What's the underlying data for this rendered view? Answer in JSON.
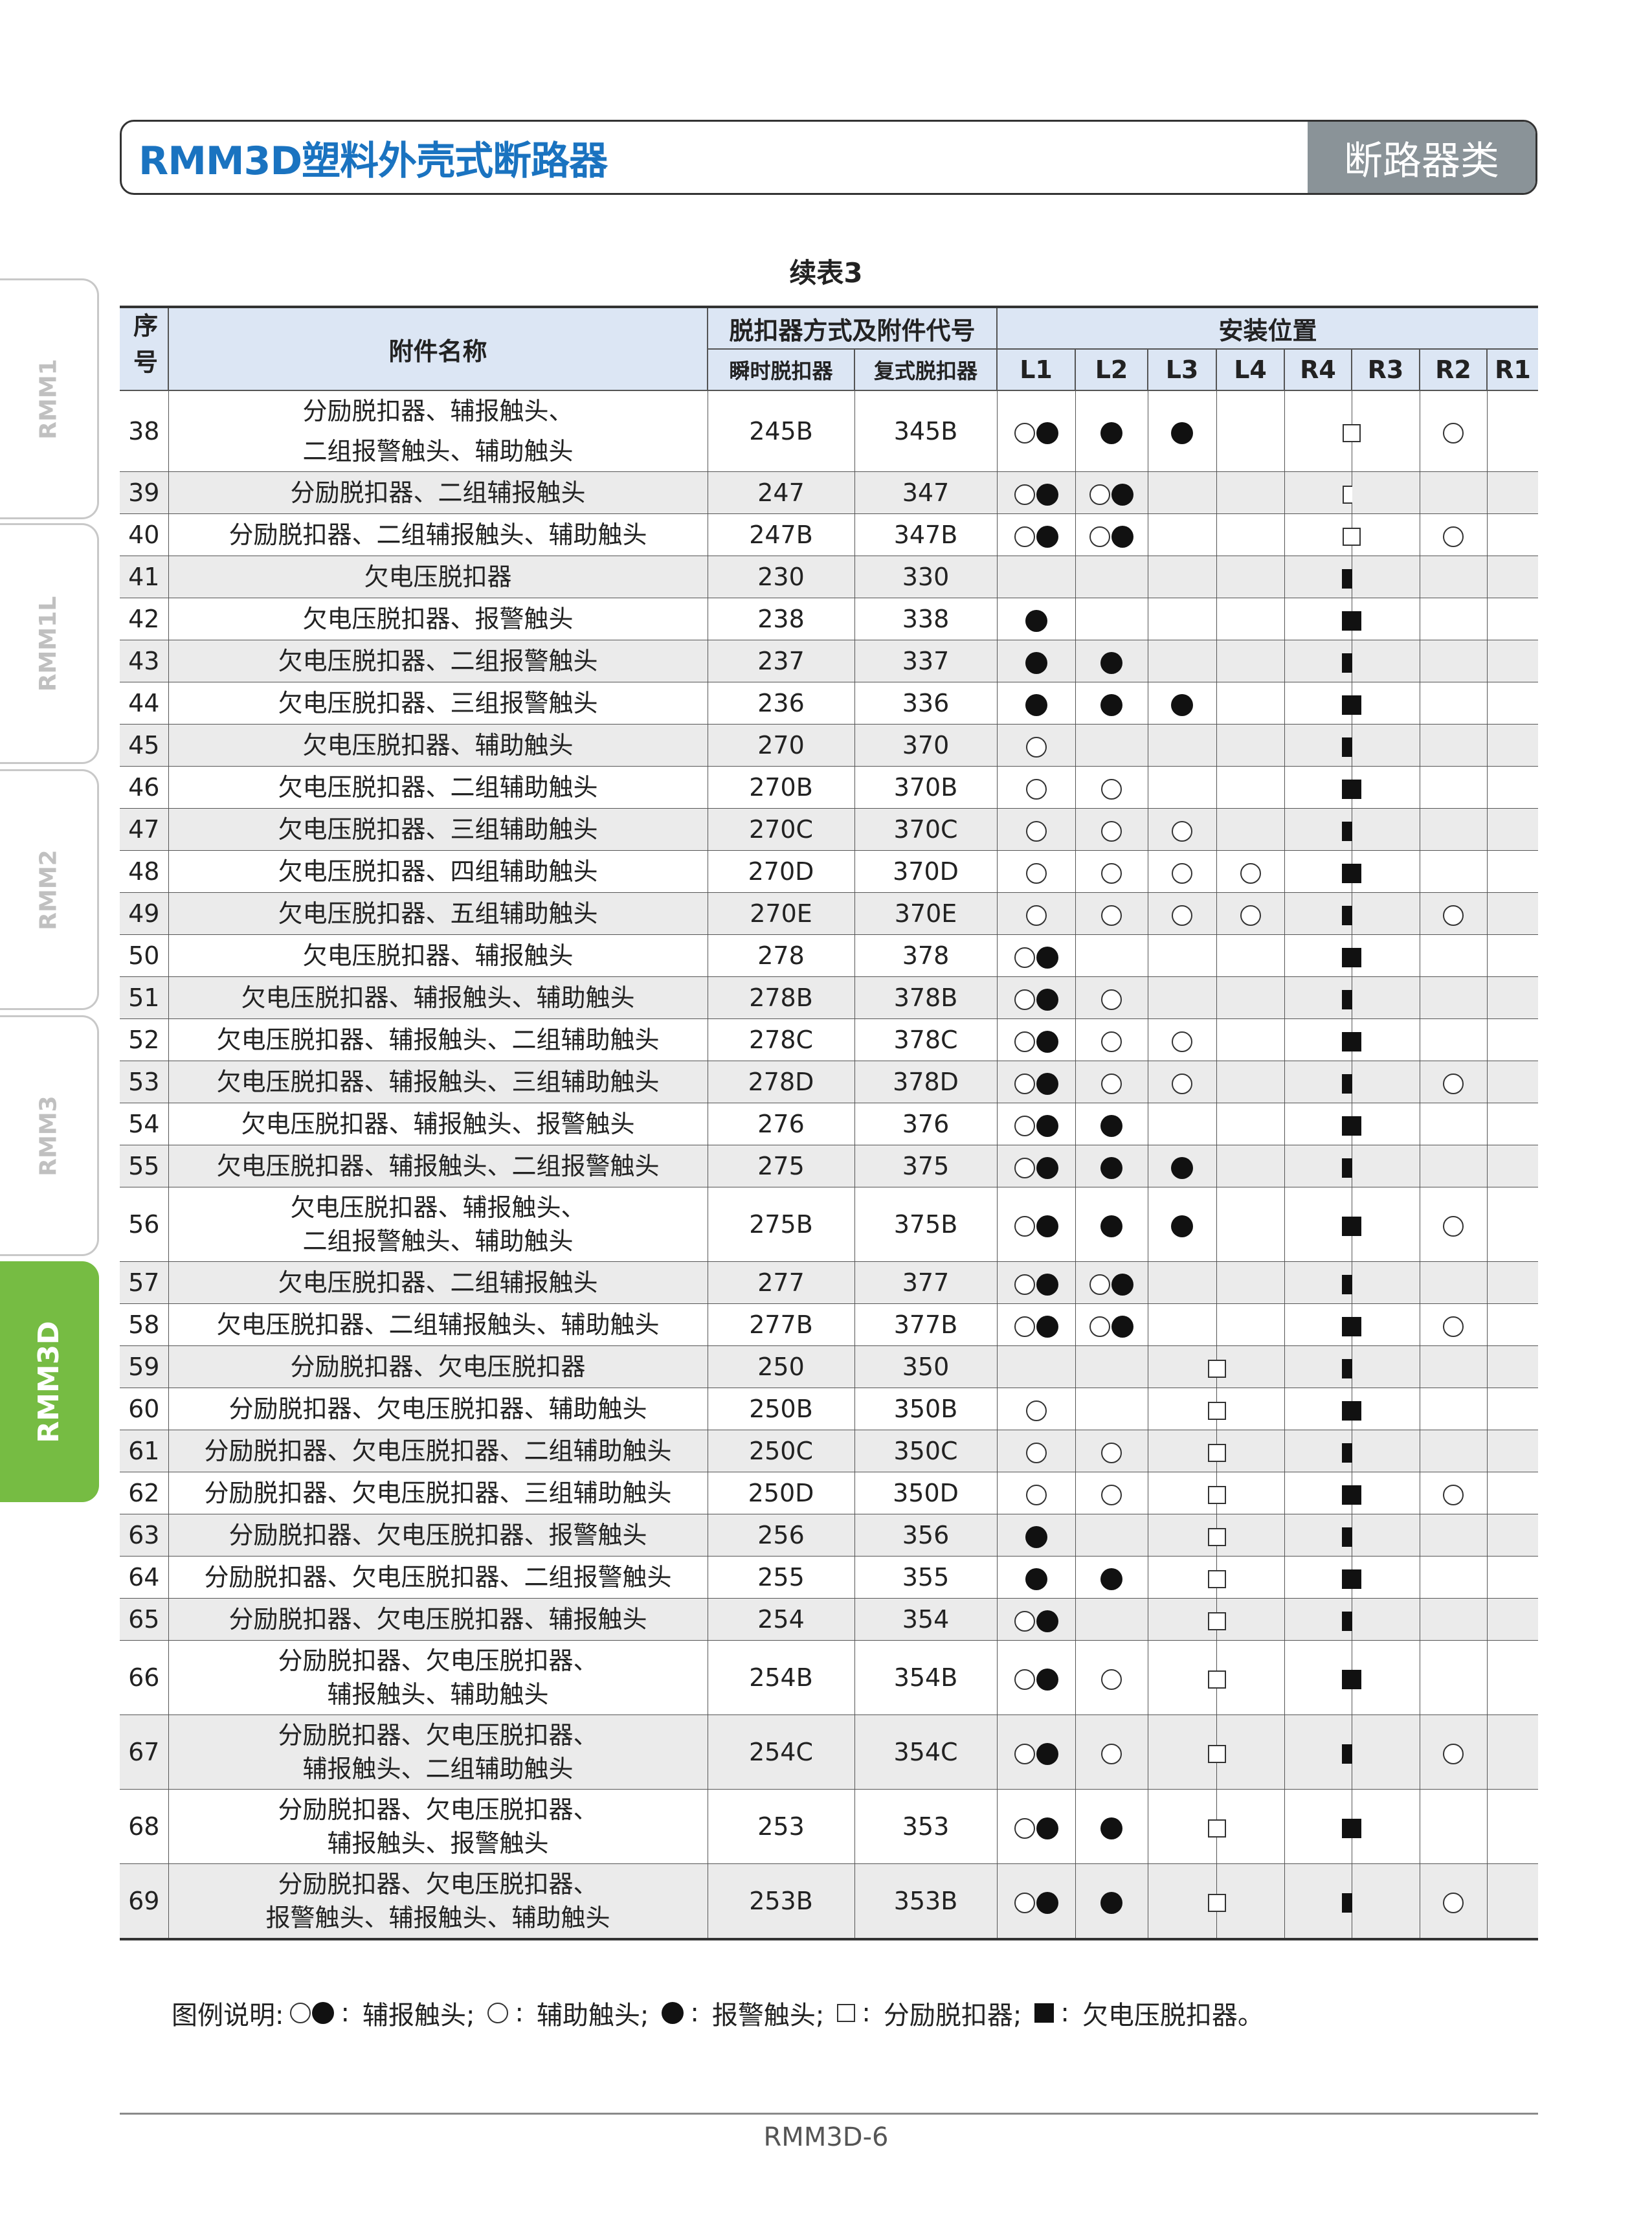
{
  "header": {
    "title": "RMM3D塑料外壳式断路器",
    "category": "断路器类"
  },
  "side_tabs": [
    {
      "label": "RMM1",
      "active": false
    },
    {
      "label": "RMM1L",
      "active": false
    },
    {
      "label": "RMM2",
      "active": false
    },
    {
      "label": "RMM3",
      "active": false
    },
    {
      "label": "RMM3D",
      "active": true
    }
  ],
  "caption": "续表3",
  "table": {
    "headers": {
      "seq": "序号",
      "name": "附件名称",
      "code_group": "脱扣器方式及附件代号",
      "instant": "瞬时脱扣器",
      "compound": "复式脱扣器",
      "position_group": "安装位置",
      "positions": [
        "L1",
        "L2",
        "L3",
        "L4",
        "R4",
        "R3",
        "R2",
        "R1"
      ]
    },
    "symbol_legend_codes": {
      "ob": "○●",
      "o": "○",
      "b": "●",
      "s": "□",
      "S": "■"
    },
    "rows": [
      {
        "seq": "38",
        "name": [
          "分励脱扣器、辅报触头、",
          "二组报警触头、辅助触头"
        ],
        "instant": "245B",
        "compound": "345B",
        "pos": {
          "L1": "ob",
          "L2": "b",
          "L3": "b",
          "R4": "s",
          "R2": "o"
        }
      },
      {
        "seq": "39",
        "name": [
          "分励脱扣器、二组辅报触头"
        ],
        "instant": "247",
        "compound": "347",
        "pos": {
          "L1": "ob",
          "L2": "ob",
          "R4": "s"
        }
      },
      {
        "seq": "40",
        "name": [
          "分励脱扣器、二组辅报触头、辅助触头"
        ],
        "instant": "247B",
        "compound": "347B",
        "pos": {
          "L1": "ob",
          "L2": "ob",
          "R4": "s",
          "R2": "o"
        }
      },
      {
        "seq": "41",
        "name": [
          "欠电压脱扣器"
        ],
        "instant": "230",
        "compound": "330",
        "pos": {
          "R4": "S"
        }
      },
      {
        "seq": "42",
        "name": [
          "欠电压脱扣器、报警触头"
        ],
        "instant": "238",
        "compound": "338",
        "pos": {
          "L1": "b",
          "R4": "S"
        }
      },
      {
        "seq": "43",
        "name": [
          "欠电压脱扣器、二组报警触头"
        ],
        "instant": "237",
        "compound": "337",
        "pos": {
          "L1": "b",
          "L2": "b",
          "R4": "S"
        }
      },
      {
        "seq": "44",
        "name": [
          "欠电压脱扣器、三组报警触头"
        ],
        "instant": "236",
        "compound": "336",
        "pos": {
          "L1": "b",
          "L2": "b",
          "L3": "b",
          "R4": "S"
        }
      },
      {
        "seq": "45",
        "name": [
          "欠电压脱扣器、辅助触头"
        ],
        "instant": "270",
        "compound": "370",
        "pos": {
          "L1": "o",
          "R4": "S"
        }
      },
      {
        "seq": "46",
        "name": [
          "欠电压脱扣器、二组辅助触头"
        ],
        "instant": "270B",
        "compound": "370B",
        "pos": {
          "L1": "o",
          "L2": "o",
          "R4": "S"
        }
      },
      {
        "seq": "47",
        "name": [
          "欠电压脱扣器、三组辅助触头"
        ],
        "instant": "270C",
        "compound": "370C",
        "pos": {
          "L1": "o",
          "L2": "o",
          "L3": "o",
          "R4": "S"
        }
      },
      {
        "seq": "48",
        "name": [
          "欠电压脱扣器、四组辅助触头"
        ],
        "instant": "270D",
        "compound": "370D",
        "pos": {
          "L1": "o",
          "L2": "o",
          "L3": "o",
          "L4": "o",
          "R4": "S"
        }
      },
      {
        "seq": "49",
        "name": [
          "欠电压脱扣器、五组辅助触头"
        ],
        "instant": "270E",
        "compound": "370E",
        "pos": {
          "L1": "o",
          "L2": "o",
          "L3": "o",
          "L4": "o",
          "R4": "S",
          "R2": "o"
        }
      },
      {
        "seq": "50",
        "name": [
          "欠电压脱扣器、辅报触头"
        ],
        "instant": "278",
        "compound": "378",
        "pos": {
          "L1": "ob",
          "R4": "S"
        }
      },
      {
        "seq": "51",
        "name": [
          "欠电压脱扣器、辅报触头、辅助触头"
        ],
        "instant": "278B",
        "compound": "378B",
        "pos": {
          "L1": "ob",
          "L2": "o",
          "R4": "S"
        }
      },
      {
        "seq": "52",
        "name": [
          "欠电压脱扣器、辅报触头、二组辅助触头"
        ],
        "instant": "278C",
        "compound": "378C",
        "pos": {
          "L1": "ob",
          "L2": "o",
          "L3": "o",
          "R4": "S"
        }
      },
      {
        "seq": "53",
        "name": [
          "欠电压脱扣器、辅报触头、三组辅助触头"
        ],
        "instant": "278D",
        "compound": "378D",
        "pos": {
          "L1": "ob",
          "L2": "o",
          "L3": "o",
          "R4": "S",
          "R2": "o"
        }
      },
      {
        "seq": "54",
        "name": [
          "欠电压脱扣器、辅报触头、报警触头"
        ],
        "instant": "276",
        "compound": "376",
        "pos": {
          "L1": "ob",
          "L2": "b",
          "R4": "S"
        }
      },
      {
        "seq": "55",
        "name": [
          "欠电压脱扣器、辅报触头、二组报警触头"
        ],
        "instant": "275",
        "compound": "375",
        "pos": {
          "L1": "ob",
          "L2": "b",
          "L3": "b",
          "R4": "S"
        }
      },
      {
        "seq": "56",
        "name": [
          "欠电压脱扣器、辅报触头、",
          "二组报警触头、辅助触头"
        ],
        "instant": "275B",
        "compound": "375B",
        "pos": {
          "L1": "ob",
          "L2": "b",
          "L3": "b",
          "R4": "S",
          "R2": "o"
        }
      },
      {
        "seq": "57",
        "name": [
          "欠电压脱扣器、二组辅报触头"
        ],
        "instant": "277",
        "compound": "377",
        "pos": {
          "L1": "ob",
          "L2": "ob",
          "R4": "S"
        }
      },
      {
        "seq": "58",
        "name": [
          "欠电压脱扣器、二组辅报触头、辅助触头"
        ],
        "instant": "277B",
        "compound": "377B",
        "pos": {
          "L1": "ob",
          "L2": "ob",
          "R4": "S",
          "R2": "o"
        }
      },
      {
        "seq": "59",
        "name": [
          "分励脱扣器、欠电压脱扣器"
        ],
        "instant": "250",
        "compound": "350",
        "pos": {
          "L4": "s",
          "R4": "S"
        }
      },
      {
        "seq": "60",
        "name": [
          "分励脱扣器、欠电压脱扣器、辅助触头"
        ],
        "instant": "250B",
        "compound": "350B",
        "pos": {
          "L1": "o",
          "L4": "s",
          "R4": "S"
        }
      },
      {
        "seq": "61",
        "name": [
          "分励脱扣器、欠电压脱扣器、二组辅助触头"
        ],
        "instant": "250C",
        "compound": "350C",
        "pos": {
          "L1": "o",
          "L2": "o",
          "L4": "s",
          "R4": "S"
        }
      },
      {
        "seq": "62",
        "name": [
          "分励脱扣器、欠电压脱扣器、三组辅助触头"
        ],
        "instant": "250D",
        "compound": "350D",
        "pos": {
          "L1": "o",
          "L2": "o",
          "L4": "s",
          "R4": "S",
          "R2": "o"
        }
      },
      {
        "seq": "63",
        "name": [
          "分励脱扣器、欠电压脱扣器、报警触头"
        ],
        "instant": "256",
        "compound": "356",
        "pos": {
          "L1": "b",
          "L4": "s",
          "R4": "S"
        }
      },
      {
        "seq": "64",
        "name": [
          "分励脱扣器、欠电压脱扣器、二组报警触头"
        ],
        "instant": "255",
        "compound": "355",
        "pos": {
          "L1": "b",
          "L2": "b",
          "L4": "s",
          "R4": "S"
        }
      },
      {
        "seq": "65",
        "name": [
          "分励脱扣器、欠电压脱扣器、辅报触头"
        ],
        "instant": "254",
        "compound": "354",
        "pos": {
          "L1": "ob",
          "L4": "s",
          "R4": "S"
        }
      },
      {
        "seq": "66",
        "name": [
          "分励脱扣器、欠电压脱扣器、",
          "辅报触头、辅助触头"
        ],
        "instant": "254B",
        "compound": "354B",
        "pos": {
          "L1": "ob",
          "L2": "o",
          "L4": "s",
          "R4": "S"
        }
      },
      {
        "seq": "67",
        "name": [
          "分励脱扣器、欠电压脱扣器、",
          "辅报触头、二组辅助触头"
        ],
        "instant": "254C",
        "compound": "354C",
        "pos": {
          "L1": "ob",
          "L2": "o",
          "L4": "s",
          "R4": "S",
          "R2": "o"
        }
      },
      {
        "seq": "68",
        "name": [
          "分励脱扣器、欠电压脱扣器、",
          "辅报触头、报警触头"
        ],
        "instant": "253",
        "compound": "353",
        "pos": {
          "L1": "ob",
          "L2": "b",
          "L4": "s",
          "R4": "S"
        }
      },
      {
        "seq": "69",
        "name": [
          "分励脱扣器、欠电压脱扣器、",
          "报警触头、辅报触头、辅助触头"
        ],
        "instant": "253B",
        "compound": "353B",
        "pos": {
          "L1": "ob",
          "L2": "b",
          "L4": "s",
          "R4": "S",
          "R2": "o"
        }
      }
    ]
  },
  "legend": {
    "prefix": "图例说明:",
    "items": [
      {
        "symbol": "ob",
        "label": "辅报触头;"
      },
      {
        "symbol": "o",
        "label": "辅助触头;"
      },
      {
        "symbol": "b",
        "label": "报警触头;"
      },
      {
        "symbol": "s",
        "label": "分励脱扣器;"
      },
      {
        "symbol": "S",
        "label": "欠电压脱扣器。"
      }
    ],
    "separator": ":"
  },
  "footer": {
    "page": "RMM3D-6"
  },
  "colors": {
    "title_blue": "#1a73c0",
    "category_grey": "#8a9398",
    "header_blue": "#dce6f4",
    "row_grey": "#ebebeb",
    "active_tab_green": "#76bc43"
  }
}
